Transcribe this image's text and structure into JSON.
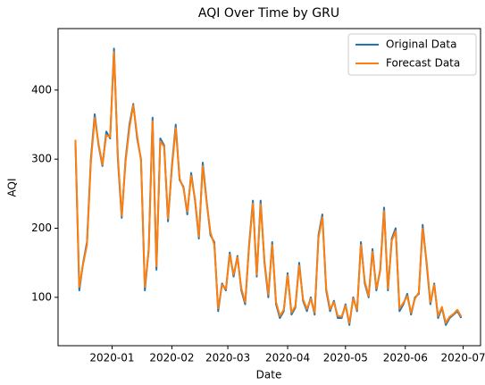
{
  "chart_data": {
    "type": "line",
    "title": "AQI Over Time by GRU",
    "x_label": "Date",
    "y_label": "AQI",
    "x": [
      0,
      2,
      4,
      6,
      8,
      10,
      12,
      14,
      16,
      18,
      20,
      22,
      24,
      26,
      28,
      30,
      32,
      34,
      36,
      38,
      40,
      42,
      44,
      46,
      48,
      50,
      52,
      54,
      56,
      58,
      60,
      62,
      64,
      66,
      68,
      70,
      72,
      74,
      76,
      78,
      80,
      82,
      84,
      86,
      88,
      90,
      92,
      94,
      96,
      98,
      100,
      102,
      104,
      106,
      108,
      110,
      112,
      114,
      116,
      118,
      120,
      122,
      124,
      126,
      128,
      130,
      132,
      134,
      136,
      138,
      140,
      142,
      144,
      146,
      148,
      150,
      152,
      154,
      156,
      158,
      160,
      162,
      164,
      166,
      168,
      170,
      172,
      174,
      176,
      178,
      180,
      182,
      184,
      186,
      188,
      190,
      192,
      194,
      196,
      198,
      200
    ],
    "series": [
      {
        "name": "Original Data",
        "color": "#1f77b4",
        "values": [
          325,
          110,
          150,
          180,
          300,
          365,
          320,
          290,
          340,
          330,
          460,
          300,
          215,
          300,
          350,
          380,
          330,
          300,
          110,
          170,
          360,
          140,
          330,
          320,
          210,
          290,
          350,
          270,
          260,
          220,
          280,
          240,
          185,
          295,
          240,
          190,
          180,
          80,
          120,
          110,
          165,
          130,
          160,
          110,
          90,
          175,
          240,
          130,
          240,
          150,
          100,
          180,
          90,
          70,
          80,
          135,
          75,
          85,
          150,
          95,
          80,
          100,
          75,
          190,
          220,
          110,
          80,
          95,
          70,
          70,
          90,
          60,
          100,
          80,
          180,
          120,
          100,
          170,
          110,
          140,
          230,
          110,
          185,
          200,
          80,
          90,
          105,
          75,
          100,
          105,
          205,
          150,
          90,
          120,
          70,
          85,
          60,
          70,
          75,
          80,
          70
        ]
      },
      {
        "name": "Forecast Data",
        "color": "#ff7f0e",
        "values": [
          328,
          115,
          148,
          176,
          295,
          360,
          322,
          292,
          335,
          332,
          455,
          305,
          218,
          296,
          345,
          378,
          334,
          298,
          115,
          168,
          355,
          145,
          326,
          318,
          214,
          286,
          345,
          272,
          258,
          224,
          276,
          242,
          188,
          290,
          238,
          194,
          176,
          84,
          118,
          112,
          162,
          133,
          158,
          113,
          93,
          172,
          236,
          133,
          235,
          153,
          104,
          176,
          93,
          73,
          82,
          132,
          78,
          87,
          146,
          97,
          83,
          98,
          78,
          186,
          216,
          113,
          83,
          93,
          73,
          72,
          88,
          63,
          98,
          82,
          176,
          123,
          102,
          166,
          113,
          138,
          225,
          113,
          182,
          196,
          84,
          92,
          102,
          78,
          98,
          107,
          200,
          153,
          93,
          118,
          73,
          86,
          63,
          72,
          76,
          82,
          72
        ]
      }
    ],
    "xlim": [
      -9,
      210
    ],
    "xticks": [
      {
        "value": 19,
        "label": "2020-01"
      },
      {
        "value": 50,
        "label": "2020-02"
      },
      {
        "value": 79,
        "label": "2020-03"
      },
      {
        "value": 110,
        "label": "2020-04"
      },
      {
        "value": 140,
        "label": "2020-05"
      },
      {
        "value": 171,
        "label": "2020-06"
      },
      {
        "value": 201,
        "label": "2020-07"
      }
    ],
    "ylim": [
      30,
      489
    ],
    "yticks": [
      100,
      200,
      300,
      400
    ],
    "legend": "upper right"
  }
}
